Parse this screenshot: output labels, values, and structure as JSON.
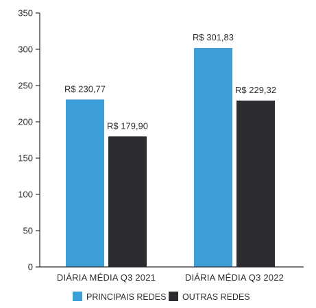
{
  "chart_data": {
    "type": "bar",
    "categories": [
      "DIÁRIA MÉDIA Q3 2021",
      "DIÁRIA MÉDIA Q3 2022"
    ],
    "series": [
      {
        "name": "PRINCIPAIS REDES",
        "values": [
          230.77,
          301.83
        ],
        "labels": [
          "R$ 230,77",
          "R$ 301,83"
        ],
        "color": "#3d9fd8"
      },
      {
        "name": "OUTRAS REDES",
        "values": [
          179.9,
          229.32
        ],
        "labels": [
          "R$ 179,90",
          "R$ 229,32"
        ],
        "color": "#2c2d31"
      }
    ],
    "ylim": [
      0,
      350
    ],
    "yticks": [
      0,
      50,
      100,
      150,
      200,
      250,
      300,
      350
    ],
    "title": "",
    "xlabel": "",
    "ylabel": "",
    "grid": false,
    "legend_position": "bottom"
  }
}
